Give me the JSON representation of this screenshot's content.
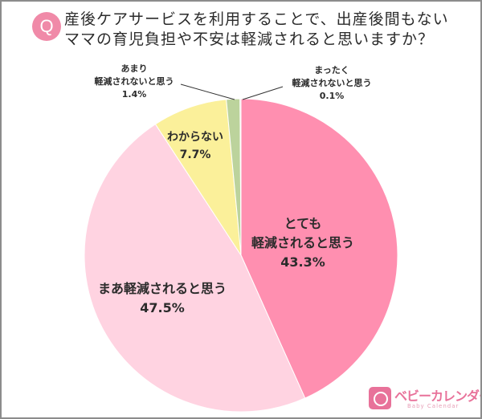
{
  "question": {
    "badge": "Q",
    "line1": "産後ケアサービスを利用することで、出産後間もない",
    "line2": "ママの育児負担や不安は軽減されると思いますか？"
  },
  "chart_data": {
    "type": "pie",
    "title": "産後ケアサービスを利用することで、出産後間もないママの育児負担や不安は軽減されると思いますか？",
    "start_angle": "12 o'clock, clockwise",
    "slices": [
      {
        "label": "とても軽減されると思う",
        "value": 43.3,
        "color": "#ff8fb0"
      },
      {
        "label": "まあ軽減されると思う",
        "value": 47.5,
        "color": "#ffd3e1"
      },
      {
        "label": "わからない",
        "value": 7.7,
        "color": "#fbf09a"
      },
      {
        "label": "あまり軽減されないと思う",
        "value": 1.4,
        "color": "#bcd39c"
      },
      {
        "label": "まったく軽減されないと思う",
        "value": 0.1,
        "color": "#e8c4d0"
      }
    ],
    "legend": "none (labels on slices)"
  },
  "labels": {
    "s1_l1": "とても",
    "s1_l2": "軽減されると思う",
    "s1_pct": "43.3%",
    "s2_l1": "まあ軽減されると思う",
    "s2_pct": "47.5%",
    "s3_l1": "わからない",
    "s3_pct": "7.7%",
    "s4_l1": "あまり",
    "s4_l2": "軽減されないと思う",
    "s4_pct": "1.4%",
    "s5_l1": "まったく",
    "s5_l2": "軽減されないと思う",
    "s5_pct": "0.1%"
  },
  "logo": {
    "name": "ベビーカレンダー",
    "sub": "Baby Calendar"
  }
}
